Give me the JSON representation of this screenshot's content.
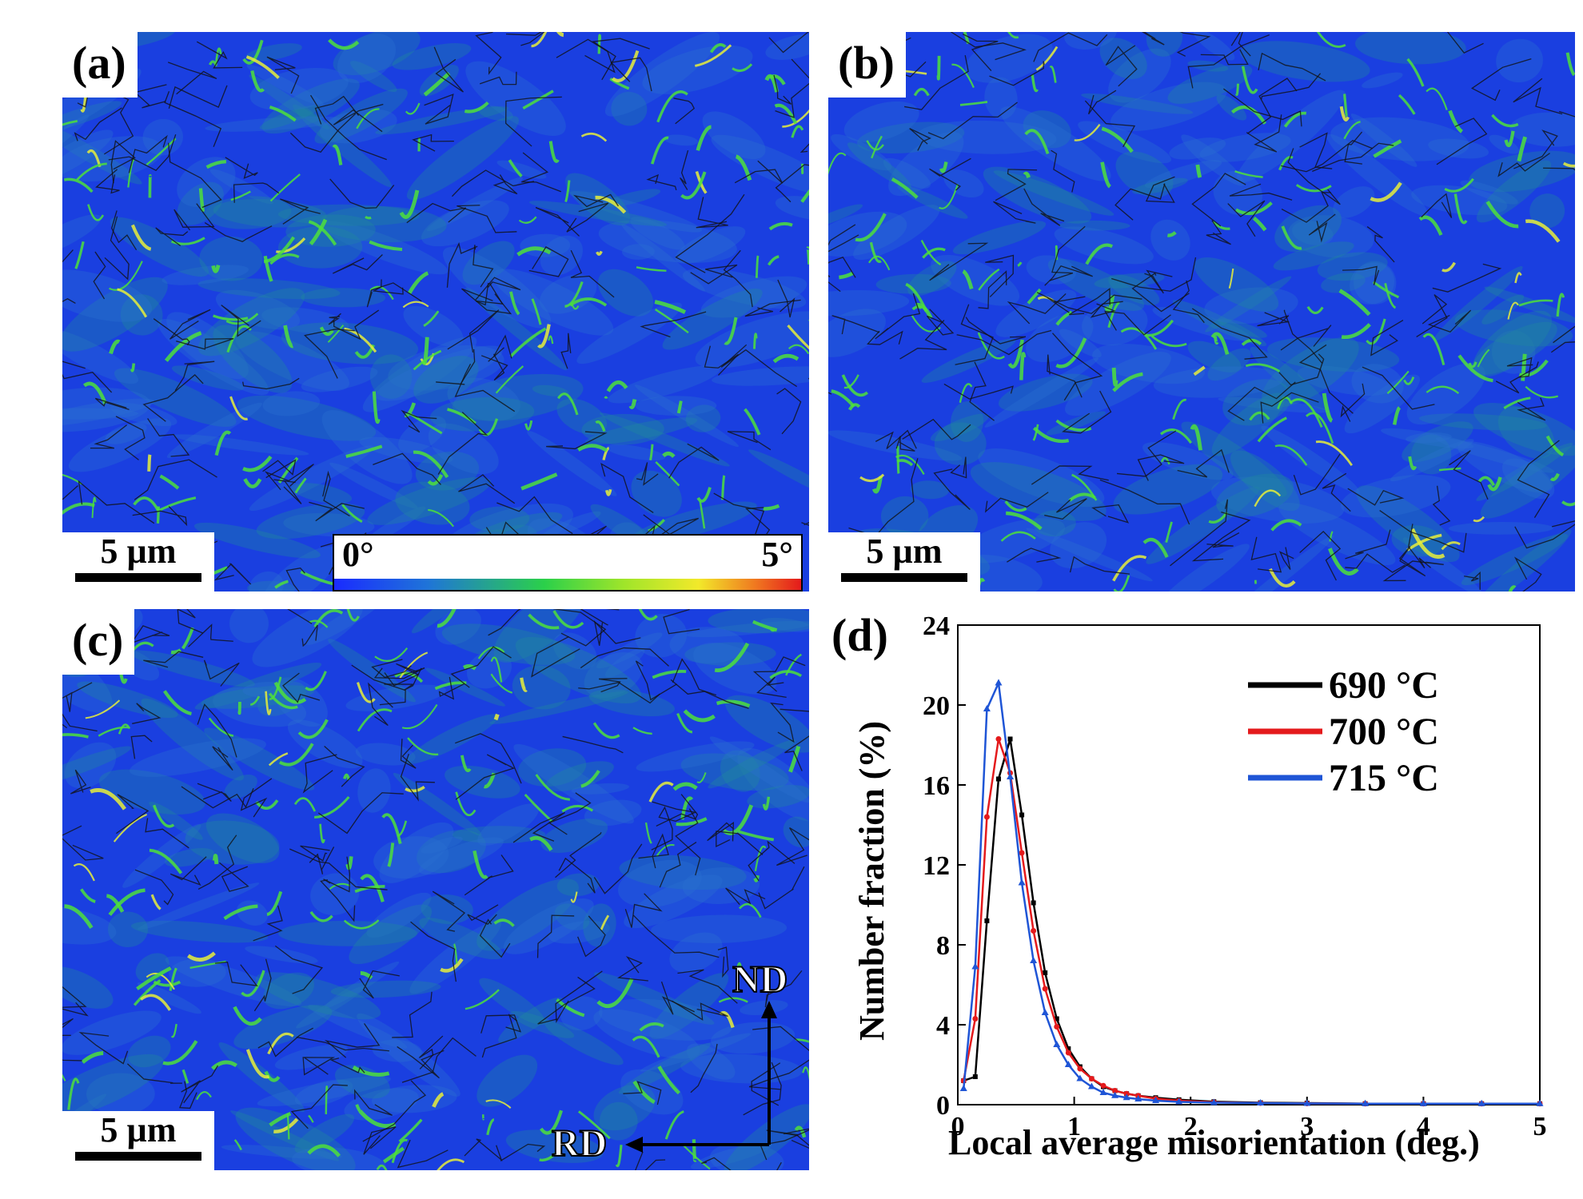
{
  "panels": {
    "a": {
      "label": "(a)",
      "scale": "5 µm"
    },
    "b": {
      "label": "(b)",
      "scale": "5 µm"
    },
    "c": {
      "label": "(c)",
      "scale": "5 µm"
    },
    "d": {
      "label": "(d)"
    }
  },
  "colorbar": {
    "min_label": "0°",
    "max_label": "5°"
  },
  "axes_dirs": {
    "vertical": "ND",
    "horizontal": "RD"
  },
  "colors": {
    "map_background": "#1a3fe0",
    "series_690": "#000000",
    "series_700": "#e41a1c",
    "series_715": "#1f55d6"
  },
  "chart_data": {
    "type": "line",
    "title": "",
    "xlabel": "Local average misorientation (deg.)",
    "ylabel": "Number fraction (%)",
    "xlim": [
      0,
      5
    ],
    "ylim": [
      0,
      24
    ],
    "xticks": [
      0,
      1,
      2,
      3,
      4,
      5
    ],
    "yticks": [
      0,
      4,
      8,
      12,
      16,
      20,
      24
    ],
    "legend_position": "top-right",
    "series": [
      {
        "name": "690 °C",
        "color": "#000000",
        "marker": "square",
        "x": [
          0.05,
          0.15,
          0.25,
          0.35,
          0.45,
          0.55,
          0.65,
          0.75,
          0.85,
          0.95,
          1.05,
          1.15,
          1.25,
          1.35,
          1.45,
          1.55,
          1.7,
          1.9,
          2.2,
          2.6,
          3.0,
          3.5,
          4.0,
          4.5,
          5.0
        ],
        "y": [
          1.2,
          1.4,
          9.2,
          16.3,
          18.3,
          14.5,
          10.1,
          6.6,
          4.3,
          2.8,
          1.9,
          1.3,
          0.9,
          0.7,
          0.55,
          0.45,
          0.35,
          0.25,
          0.15,
          0.1,
          0.08,
          0.05,
          0.05,
          0.05,
          0.05
        ]
      },
      {
        "name": "700 °C",
        "color": "#e41a1c",
        "marker": "circle",
        "x": [
          0.05,
          0.15,
          0.25,
          0.35,
          0.45,
          0.55,
          0.65,
          0.75,
          0.85,
          0.95,
          1.05,
          1.15,
          1.25,
          1.35,
          1.45,
          1.55,
          1.7,
          1.9,
          2.2,
          2.6,
          3.0,
          3.5,
          4.0,
          4.5,
          5.0
        ],
        "y": [
          1.2,
          4.3,
          14.4,
          18.3,
          16.6,
          12.6,
          8.7,
          5.8,
          3.9,
          2.6,
          1.8,
          1.3,
          0.95,
          0.7,
          0.55,
          0.45,
          0.3,
          0.2,
          0.12,
          0.08,
          0.06,
          0.05,
          0.05,
          0.05,
          0.05
        ]
      },
      {
        "name": "715 °C",
        "color": "#1f55d6",
        "marker": "triangle",
        "x": [
          0.05,
          0.15,
          0.25,
          0.35,
          0.45,
          0.55,
          0.65,
          0.75,
          0.85,
          0.95,
          1.05,
          1.15,
          1.25,
          1.35,
          1.45,
          1.55,
          1.7,
          1.9,
          2.2,
          2.6,
          3.0,
          3.5,
          4.0,
          4.5,
          5.0
        ],
        "y": [
          0.8,
          6.9,
          19.8,
          21.1,
          16.4,
          11.1,
          7.2,
          4.6,
          3.0,
          2.0,
          1.3,
          0.9,
          0.6,
          0.45,
          0.35,
          0.28,
          0.2,
          0.14,
          0.1,
          0.08,
          0.06,
          0.05,
          0.05,
          0.05,
          0.05
        ]
      }
    ]
  }
}
